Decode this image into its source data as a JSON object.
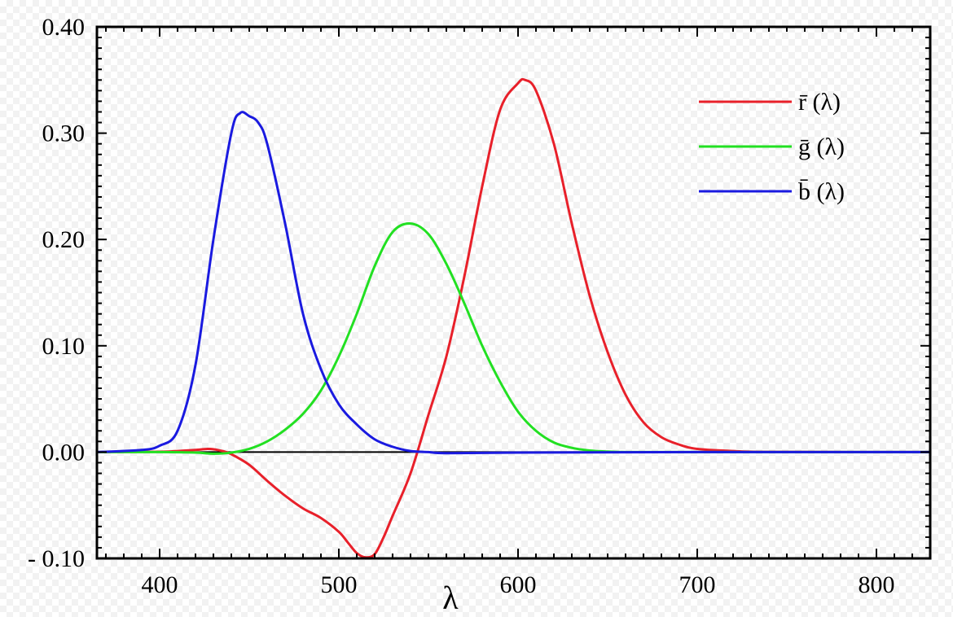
{
  "chart_data": {
    "type": "line",
    "title": "",
    "xlabel": "λ",
    "ylabel": "",
    "xlim": [
      365,
      830
    ],
    "ylim": [
      -0.1,
      0.4
    ],
    "x_ticks": [
      400,
      500,
      600,
      700,
      800
    ],
    "x_tick_labels": [
      "400",
      "500",
      "600",
      "700",
      "800"
    ],
    "y_ticks": [
      0.4,
      0.3,
      0.2,
      0.1,
      0.0,
      -0.1
    ],
    "y_tick_labels": [
      "0.40",
      "0.30",
      "0.20",
      "0.10",
      "0.00",
      "- 0.10"
    ],
    "grid": false,
    "zero_line": true,
    "legend_position": "top-right",
    "series": [
      {
        "name": "r̄ (λ)",
        "color": "#e8202a",
        "x": [
          365,
          400,
          410,
          420,
          428,
          435,
          440,
          450,
          460,
          470,
          480,
          490,
          500,
          505,
          510,
          515,
          520,
          525,
          530,
          540,
          550,
          560,
          570,
          580,
          590,
          600,
          604,
          610,
          620,
          630,
          640,
          650,
          660,
          670,
          680,
          690,
          700,
          720,
          740,
          830
        ],
        "y": [
          0,
          0.0003,
          0.001,
          0.002,
          0.003,
          0.001,
          -0.002,
          -0.012,
          -0.027,
          -0.041,
          -0.053,
          -0.062,
          -0.075,
          -0.085,
          -0.095,
          -0.099,
          -0.096,
          -0.08,
          -0.06,
          -0.02,
          0.035,
          0.09,
          0.165,
          0.25,
          0.322,
          0.347,
          0.35,
          0.34,
          0.29,
          0.215,
          0.147,
          0.094,
          0.054,
          0.028,
          0.014,
          0.007,
          0.003,
          0.001,
          0.0002,
          0
        ]
      },
      {
        "name": "ḡ (λ)",
        "color": "#22e022",
        "x": [
          365,
          400,
          420,
          430,
          440,
          450,
          460,
          470,
          480,
          490,
          500,
          510,
          520,
          530,
          540,
          550,
          560,
          570,
          580,
          590,
          600,
          610,
          620,
          630,
          640,
          650,
          660,
          680,
          700,
          830
        ],
        "y": [
          0,
          0,
          -0.0005,
          -0.0015,
          -0.0005,
          0.003,
          0.01,
          0.021,
          0.036,
          0.058,
          0.09,
          0.13,
          0.175,
          0.207,
          0.215,
          0.205,
          0.177,
          0.14,
          0.1,
          0.066,
          0.038,
          0.02,
          0.009,
          0.004,
          0.0015,
          0.0005,
          0,
          0,
          0,
          0
        ]
      },
      {
        "name": "b̄ (λ)",
        "color": "#1a1ae0",
        "x": [
          365,
          390,
          400,
          410,
          420,
          430,
          440,
          445,
          450,
          455,
          460,
          470,
          480,
          490,
          500,
          510,
          520,
          530,
          540,
          550,
          560,
          600,
          700,
          830
        ],
        "y": [
          0,
          0.002,
          0.006,
          0.02,
          0.082,
          0.2,
          0.3,
          0.319,
          0.316,
          0.31,
          0.29,
          0.215,
          0.13,
          0.078,
          0.045,
          0.026,
          0.012,
          0.005,
          0.001,
          0,
          -0.001,
          -0.0005,
          0,
          0
        ]
      }
    ]
  }
}
